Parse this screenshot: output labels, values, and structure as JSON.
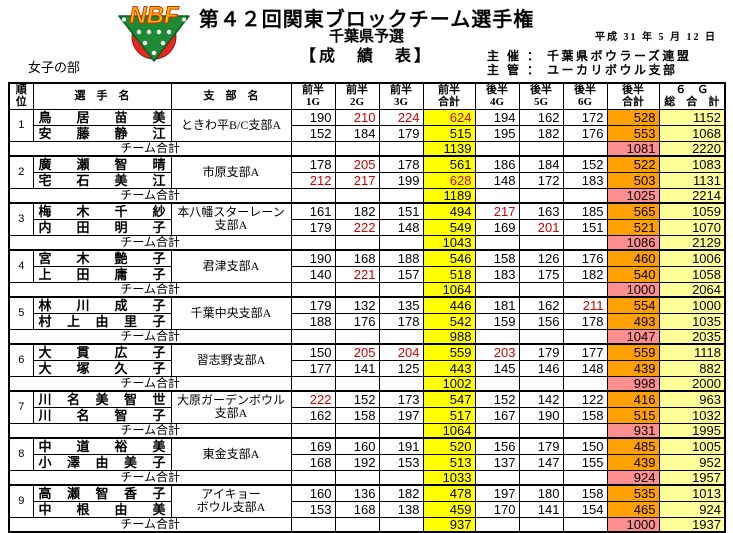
{
  "header": {
    "title": "第４２回関東ブロックチーム選手権",
    "subtitle": "千葉県予選",
    "results_label": "【成　績　表】",
    "date": "平成 31 年 5 月 12 日",
    "organizer_lines": "主 催 ： 千葉県ボウラーズ連盟\n主 管 ： ユーカリボウル支部",
    "division": "女子の部",
    "logo_text": "NBF",
    "logo_colors": {
      "ball": "#e8251f",
      "triangle": "#1f8a34",
      "letters": "#ffb400",
      "letter_outline": "#d42a00"
    }
  },
  "table": {
    "columns": {
      "rank": "順\n位",
      "name": "選　手　名",
      "branch": "支　部　名",
      "g_first": [
        "前半\n1G",
        "前半\n2G",
        "前半\n3G"
      ],
      "first_total": "前半\n合計",
      "g_second": [
        "後半\n4G",
        "後半\n5G",
        "後半\n6G"
      ],
      "second_total": "後半\n合計",
      "grand_total": "６　Ｇ\n総　合　計"
    },
    "team_total_label": "チーム合計",
    "highlight_rule": {
      "red_game_min": 200,
      "red_series_min": 600
    },
    "colors": {
      "first_total_bg": "#ffff00",
      "second_total_bg": "#ffa000",
      "team_second_total_bg": "#ff8f8f",
      "grand_total_bg": "#ffff99",
      "red_text": "#d40000"
    },
    "teams": [
      {
        "rank": "1",
        "branch": "ときわ平B/C支部A",
        "players": [
          {
            "name": "鳥 居 苗 美",
            "games1": [
              190,
              210,
              224
            ],
            "h1": 624,
            "games2": [
              194,
              162,
              172
            ],
            "h2": 528,
            "total": 1152
          },
          {
            "name": "安 藤 静 江",
            "games1": [
              152,
              184,
              179
            ],
            "h1": 515,
            "games2": [
              195,
              182,
              176
            ],
            "h2": 553,
            "total": 1068
          }
        ],
        "team": {
          "h1": 1139,
          "h2": 1081,
          "total": 2220
        }
      },
      {
        "rank": "2",
        "branch": "市原支部A",
        "players": [
          {
            "name": "廣 瀬 智 晴",
            "games1": [
              178,
              205,
              178
            ],
            "h1": 561,
            "games2": [
              186,
              184,
              152
            ],
            "h2": 522,
            "total": 1083
          },
          {
            "name": "宅 石 美 江",
            "games1": [
              212,
              217,
              199
            ],
            "h1": 628,
            "games2": [
              148,
              172,
              183
            ],
            "h2": 503,
            "total": 1131
          }
        ],
        "team": {
          "h1": 1189,
          "h2": 1025,
          "total": 2214
        }
      },
      {
        "rank": "3",
        "branch": "本八幡スターレーン支部A",
        "players": [
          {
            "name": "梅 木 千 紗",
            "games1": [
              161,
              182,
              151
            ],
            "h1": 494,
            "games2": [
              217,
              163,
              185
            ],
            "h2": 565,
            "total": 1059
          },
          {
            "name": "内 田 明 子",
            "games1": [
              179,
              222,
              148
            ],
            "h1": 549,
            "games2": [
              169,
              201,
              151
            ],
            "h2": 521,
            "total": 1070
          }
        ],
        "team": {
          "h1": 1043,
          "h2": 1086,
          "total": 2129
        }
      },
      {
        "rank": "4",
        "branch": "君津支部A",
        "players": [
          {
            "name": "宮 木 艶 子",
            "games1": [
              190,
              168,
              188
            ],
            "h1": 546,
            "games2": [
              158,
              126,
              176
            ],
            "h2": 460,
            "total": 1006
          },
          {
            "name": "上 田 庸 子",
            "games1": [
              140,
              221,
              157
            ],
            "h1": 518,
            "games2": [
              183,
              175,
              182
            ],
            "h2": 540,
            "total": 1058
          }
        ],
        "team": {
          "h1": 1064,
          "h2": 1000,
          "total": 2064
        }
      },
      {
        "rank": "5",
        "branch": "千葉中央支部A",
        "players": [
          {
            "name": "林 川 成 子",
            "games1": [
              179,
              132,
              135
            ],
            "h1": 446,
            "games2": [
              181,
              162,
              211
            ],
            "h2": 554,
            "total": 1000
          },
          {
            "name": "村 上 由 里 子",
            "games1": [
              188,
              176,
              178
            ],
            "h1": 542,
            "games2": [
              159,
              156,
              178
            ],
            "h2": 493,
            "total": 1035
          }
        ],
        "team": {
          "h1": 988,
          "h2": 1047,
          "total": 2035
        }
      },
      {
        "rank": "6",
        "branch": "習志野支部A",
        "players": [
          {
            "name": "大 貫 広 子",
            "games1": [
              150,
              205,
              204
            ],
            "h1": 559,
            "games2": [
              203,
              179,
              177
            ],
            "h2": 559,
            "total": 1118
          },
          {
            "name": "大 塚 久 子",
            "games1": [
              177,
              141,
              125
            ],
            "h1": 443,
            "games2": [
              145,
              146,
              148
            ],
            "h2": 439,
            "total": 882
          }
        ],
        "team": {
          "h1": 1002,
          "h2": 998,
          "total": 2000
        }
      },
      {
        "rank": "7",
        "branch": "大原ガーデンボウル\n支部A",
        "players": [
          {
            "name": "川 名 美 智 世",
            "games1": [
              222,
              152,
              173
            ],
            "h1": 547,
            "games2": [
              152,
              142,
              122
            ],
            "h2": 416,
            "total": 963
          },
          {
            "name": "川 名 智 子",
            "games1": [
              162,
              158,
              197
            ],
            "h1": 517,
            "games2": [
              167,
              190,
              158
            ],
            "h2": 515,
            "total": 1032
          }
        ],
        "team": {
          "h1": 1064,
          "h2": 931,
          "total": 1995
        }
      },
      {
        "rank": "8",
        "branch": "東金支部A",
        "players": [
          {
            "name": "中 道 裕 美",
            "games1": [
              169,
              160,
              191
            ],
            "h1": 520,
            "games2": [
              156,
              179,
              150
            ],
            "h2": 485,
            "total": 1005
          },
          {
            "name": "小 澤 由 美 子",
            "games1": [
              168,
              192,
              153
            ],
            "h1": 513,
            "games2": [
              137,
              147,
              155
            ],
            "h2": 439,
            "total": 952
          }
        ],
        "team": {
          "h1": 1033,
          "h2": 924,
          "total": 1957
        }
      },
      {
        "rank": "9",
        "branch": "アイキョー\nボウル支部A",
        "players": [
          {
            "name": "高 瀬 智 香 子",
            "games1": [
              160,
              136,
              182
            ],
            "h1": 478,
            "games2": [
              197,
              180,
              158
            ],
            "h2": 535,
            "total": 1013
          },
          {
            "name": "中 根 由 美",
            "games1": [
              153,
              168,
              138
            ],
            "h1": 459,
            "games2": [
              170,
              141,
              154
            ],
            "h2": 465,
            "total": 924
          }
        ],
        "team": {
          "h1": 937,
          "h2": 1000,
          "total": 1937
        }
      }
    ]
  }
}
